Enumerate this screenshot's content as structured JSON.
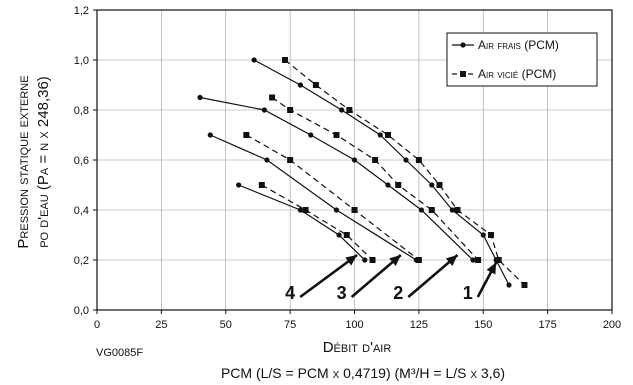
{
  "chart_data": {
    "type": "line",
    "xlabel": "Débit d'air",
    "xlabel_sub": "PCM (L/S = PCM x 0,4719) (M³/H = L/S x 3,6)",
    "ylabel_line1": "Pression statique externe",
    "ylabel_line2": "po d'eau (Pa = n x 248,36)",
    "xlim": [
      0,
      200
    ],
    "ylim": [
      0,
      1.2
    ],
    "x_ticks": [
      "0",
      "25",
      "50",
      "75",
      "100",
      "125",
      "150",
      "175",
      "200"
    ],
    "y_ticks": [
      "0,0",
      "0,2",
      "0,4",
      "0,6",
      "0,8",
      "1,0",
      "1,2"
    ],
    "grid": true,
    "legend_position": "top-right",
    "legend": [
      {
        "label": "Air frais (PCM)",
        "style": "solid",
        "marker": "circle"
      },
      {
        "label": "Air vicié (PCM)",
        "style": "dashed",
        "marker": "square"
      }
    ],
    "series": [
      {
        "curve": "1",
        "kind": "frais",
        "points": [
          [
            61,
            1.0
          ],
          [
            79,
            0.9
          ],
          [
            95,
            0.8
          ],
          [
            110,
            0.7
          ],
          [
            120,
            0.6
          ],
          [
            130,
            0.5
          ],
          [
            138,
            0.4
          ],
          [
            150,
            0.3
          ],
          [
            155,
            0.2
          ],
          [
            160,
            0.1
          ]
        ]
      },
      {
        "curve": "1",
        "kind": "vicie",
        "points": [
          [
            73,
            1.0
          ],
          [
            85,
            0.9
          ],
          [
            98,
            0.8
          ],
          [
            113,
            0.7
          ],
          [
            125,
            0.6
          ],
          [
            133,
            0.5
          ],
          [
            140,
            0.4
          ],
          [
            153,
            0.3
          ],
          [
            156,
            0.2
          ],
          [
            166,
            0.1
          ]
        ]
      },
      {
        "curve": "2",
        "kind": "frais",
        "points": [
          [
            40,
            0.85
          ],
          [
            65,
            0.8
          ],
          [
            83,
            0.7
          ],
          [
            100,
            0.6
          ],
          [
            113,
            0.5
          ],
          [
            126,
            0.4
          ],
          [
            146,
            0.2
          ]
        ]
      },
      {
        "curve": "2",
        "kind": "vicie",
        "points": [
          [
            68,
            0.85
          ],
          [
            75,
            0.8
          ],
          [
            93,
            0.7
          ],
          [
            108,
            0.6
          ],
          [
            117,
            0.5
          ],
          [
            130,
            0.4
          ],
          [
            148,
            0.2
          ]
        ]
      },
      {
        "curve": "3",
        "kind": "frais",
        "points": [
          [
            44,
            0.7
          ],
          [
            66,
            0.6
          ],
          [
            93,
            0.4
          ],
          [
            124,
            0.2
          ]
        ]
      },
      {
        "curve": "3",
        "kind": "vicie",
        "points": [
          [
            58,
            0.7
          ],
          [
            75,
            0.6
          ],
          [
            100,
            0.4
          ],
          [
            125,
            0.2
          ]
        ]
      },
      {
        "curve": "4",
        "kind": "frais",
        "points": [
          [
            55,
            0.5
          ],
          [
            79,
            0.4
          ],
          [
            94,
            0.3
          ],
          [
            104,
            0.2
          ]
        ]
      },
      {
        "curve": "4",
        "kind": "vicie",
        "points": [
          [
            64,
            0.5
          ],
          [
            81,
            0.4
          ],
          [
            97,
            0.3
          ],
          [
            107,
            0.2
          ]
        ]
      }
    ],
    "annotations": [
      {
        "label": "1",
        "x": 144,
        "y": 0.02,
        "arrow_to": [
          155,
          0.19
        ]
      },
      {
        "label": "2",
        "x": 117,
        "y": 0.02,
        "arrow_to": [
          140,
          0.22
        ]
      },
      {
        "label": "3",
        "x": 95,
        "y": 0.02,
        "arrow_to": [
          118,
          0.22
        ]
      },
      {
        "label": "4",
        "x": 75,
        "y": 0.02,
        "arrow_to": [
          101,
          0.22
        ]
      }
    ]
  },
  "figure_code": "VG0085F",
  "colors": {
    "line": "#111111",
    "grid": "#999999",
    "background": "#ffffff"
  }
}
